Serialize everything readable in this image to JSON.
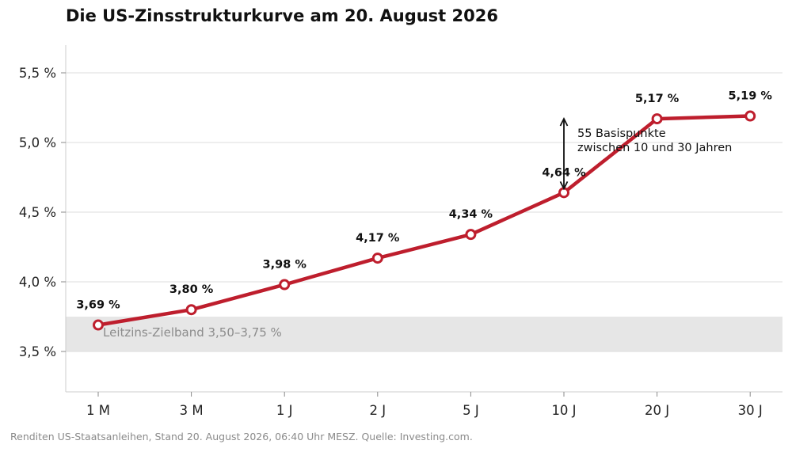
{
  "title": "Die US-Zinsstrukturkurve am 20. August 2026",
  "source": "Renditen US-Staatsanleihen, Stand 20. August 2026, 06:40 Uhr MESZ. Quelle: Investing.com.",
  "colors": {
    "line": "#be1e2d",
    "band": "#e6e6e6",
    "grid": "#dddddd",
    "axis": "#cccccc"
  },
  "chart_data": {
    "type": "line",
    "title": "Die US-Zinsstrukturkurve am 20. August 2026",
    "categories": [
      "1 M",
      "3 M",
      "1 J",
      "2 J",
      "5 J",
      "10 J",
      "20 J",
      "30 J"
    ],
    "values": [
      3.69,
      3.8,
      3.98,
      4.17,
      4.34,
      4.64,
      5.17,
      5.19
    ],
    "value_labels": [
      "3,69 %",
      "3,80 %",
      "3,98 %",
      "4,17 %",
      "4,34 %",
      "4,64 %",
      "5,17 %",
      "5,19 %"
    ],
    "y_ticks": [
      3.5,
      4.0,
      4.5,
      5.0,
      5.5
    ],
    "y_tick_labels": [
      "3,5 %",
      "4,0 %",
      "4,5 %",
      "5,0 %",
      "5,5 %"
    ],
    "ylim": [
      3.2,
      5.7
    ],
    "grid": true,
    "band": {
      "from": 3.5,
      "to": 3.75,
      "label": "Leitzins-Zielband 3,50–3,75 %"
    },
    "annotation": {
      "from_category": "10 J",
      "from_value": 4.64,
      "to_value": 5.19,
      "line1": "55 Basispunkte",
      "line2": "zwischen 10 und 30 Jahren"
    }
  }
}
